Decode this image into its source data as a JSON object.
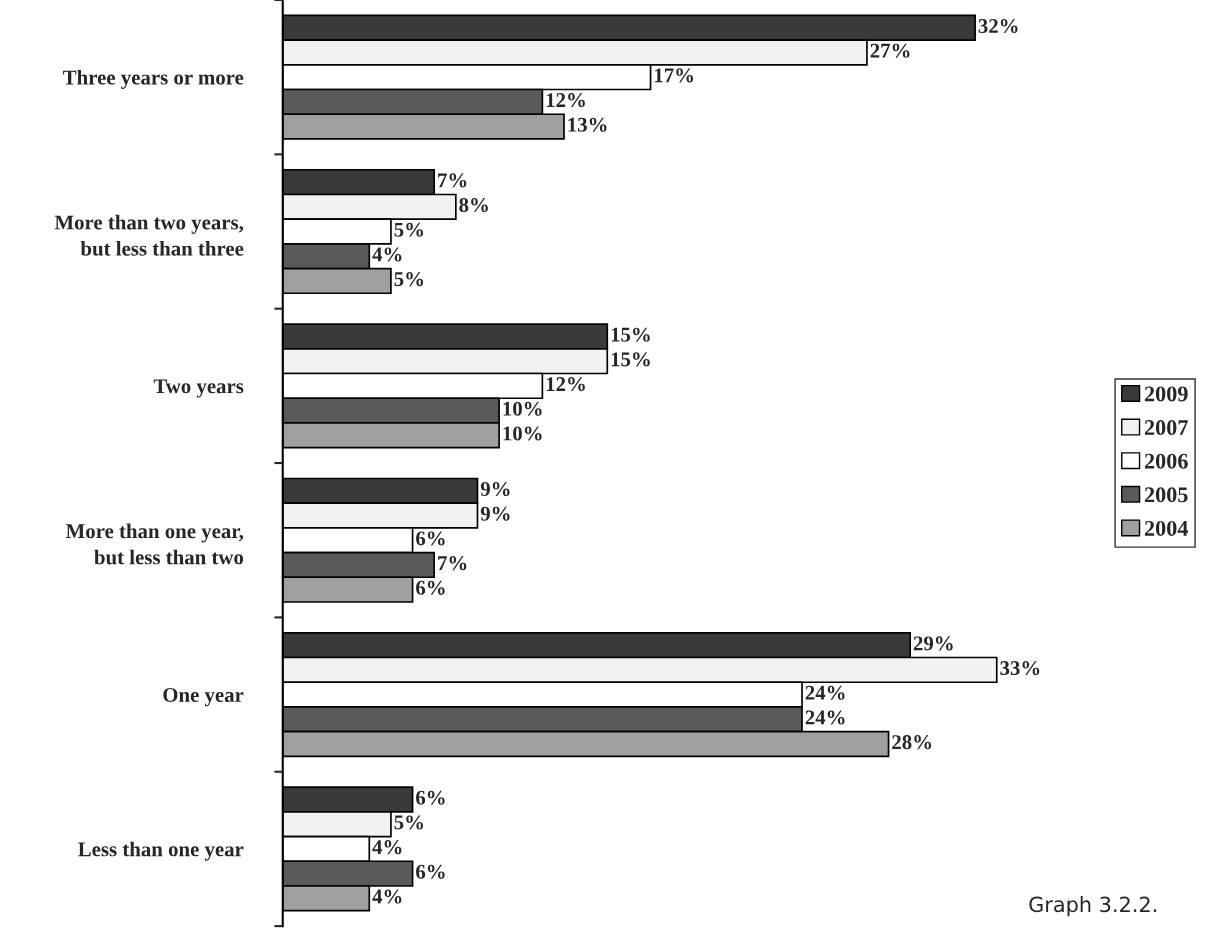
{
  "chart_data": {
    "type": "bar",
    "orientation": "horizontal",
    "categories": [
      "Three years or more",
      "More than two years,\nbut less than three",
      "Two years",
      "More than one year,\nbut less than two",
      "One year",
      "Less than one year"
    ],
    "series": [
      {
        "name": "2009",
        "color": "#3a3a3a",
        "values": [
          32,
          7,
          15,
          9,
          29,
          6
        ],
        "value_labels": [
          "32%",
          "7%",
          "15%",
          "9%",
          "29%",
          "6%"
        ]
      },
      {
        "name": "2007",
        "color": "#f2f2f2",
        "values": [
          27,
          8,
          15,
          9,
          33,
          5
        ],
        "value_labels": [
          "27%",
          "8%",
          "15%",
          "9%",
          "33%",
          "5%"
        ]
      },
      {
        "name": "2006",
        "color": "#ffffff",
        "values": [
          17,
          5,
          12,
          6,
          24,
          4
        ],
        "value_labels": [
          "17%",
          "5%",
          "12%",
          "6%",
          "24%",
          "4%"
        ]
      },
      {
        "name": "2005",
        "color": "#5a5a5a",
        "values": [
          12,
          4,
          10,
          7,
          24,
          6
        ],
        "value_labels": [
          "12%",
          "4%",
          "10%",
          "7%",
          "24%",
          "6%"
        ]
      },
      {
        "name": "2004",
        "color": "#a0a0a0",
        "values": [
          13,
          5,
          10,
          6,
          28,
          4
        ],
        "value_labels": [
          "13%",
          "5%",
          "10%",
          "6%",
          "28%",
          "4%"
        ]
      }
    ],
    "annotations": [
      "Graph 3.2.2."
    ],
    "legend": "right",
    "grid": false,
    "tick_labels": "y"
  }
}
